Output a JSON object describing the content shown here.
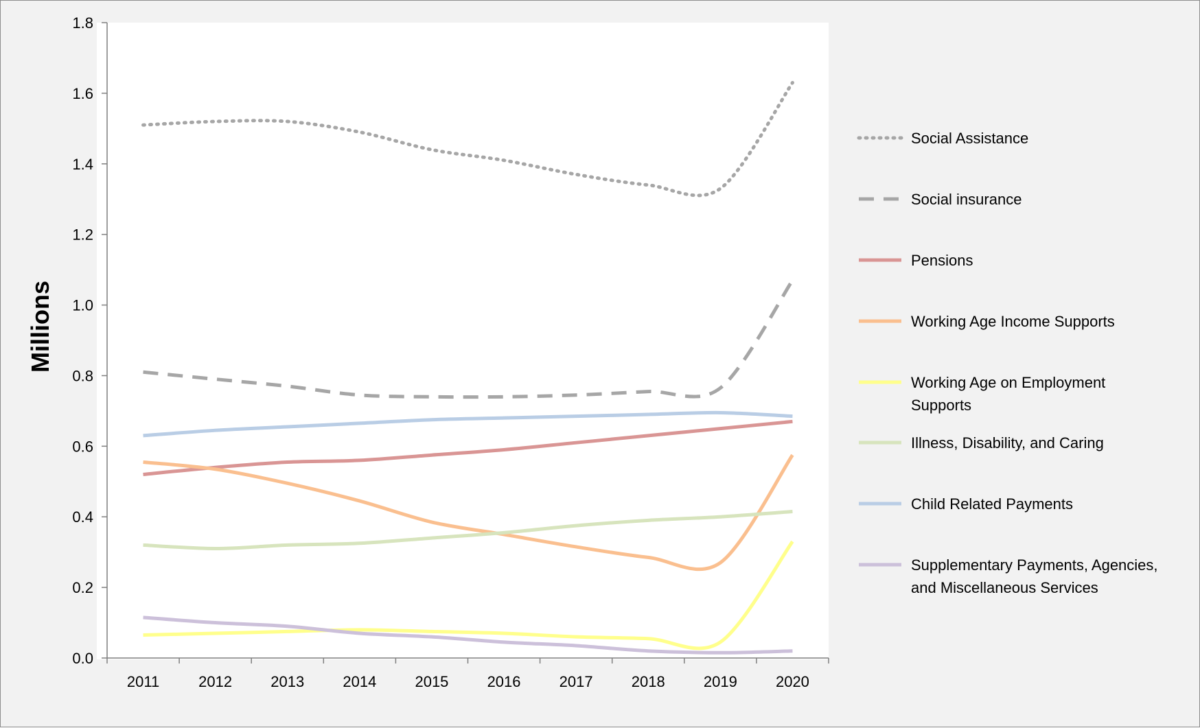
{
  "chart_data": {
    "type": "line",
    "ylabel": "Millions",
    "xlabel": "",
    "ylim": [
      0,
      1.8
    ],
    "yticks": [
      "0.0",
      "0.2",
      "0.4",
      "0.6",
      "0.8",
      "1.0",
      "1.2",
      "1.4",
      "1.6",
      "1.8"
    ],
    "categories": [
      "2011",
      "2012",
      "2013",
      "2014",
      "2015",
      "2016",
      "2017",
      "2018",
      "2019",
      "2020"
    ],
    "legend_position": "right",
    "grid": false,
    "series": [
      {
        "name": "Social Assistance",
        "style": "dotted",
        "color": "#a6a6a6",
        "values": [
          1.51,
          1.52,
          1.52,
          1.49,
          1.44,
          1.41,
          1.37,
          1.34,
          1.33,
          1.63
        ]
      },
      {
        "name": "Social insurance",
        "style": "dashed",
        "color": "#a6a6a6",
        "values": [
          0.81,
          0.79,
          0.77,
          0.745,
          0.74,
          0.74,
          0.745,
          0.755,
          0.765,
          1.07
        ]
      },
      {
        "name": "Pensions",
        "style": "solid",
        "color": "#d99594",
        "values": [
          0.52,
          0.54,
          0.555,
          0.56,
          0.575,
          0.59,
          0.61,
          0.63,
          0.65,
          0.67
        ]
      },
      {
        "name": "Working Age Income Supports",
        "style": "solid",
        "color": "#fabf8f",
        "values": [
          0.555,
          0.535,
          0.495,
          0.445,
          0.385,
          0.35,
          0.315,
          0.285,
          0.27,
          0.575
        ]
      },
      {
        "name": "Working Age on Employment Supports",
        "style": "solid",
        "color": "#ffff8c",
        "values": [
          0.065,
          0.07,
          0.075,
          0.08,
          0.075,
          0.07,
          0.06,
          0.055,
          0.045,
          0.33
        ]
      },
      {
        "name": "Illness, Disability, and Caring",
        "style": "solid",
        "color": "#d7e4bd",
        "values": [
          0.32,
          0.31,
          0.32,
          0.325,
          0.34,
          0.355,
          0.375,
          0.39,
          0.4,
          0.415
        ]
      },
      {
        "name": "Child Related Payments",
        "style": "solid",
        "color": "#b9cde5",
        "values": [
          0.63,
          0.645,
          0.655,
          0.665,
          0.675,
          0.68,
          0.685,
          0.69,
          0.695,
          0.685
        ]
      },
      {
        "name": "Supplementary Payments, Agencies, and Miscellaneous Services",
        "style": "solid",
        "color": "#ccc0da",
        "values": [
          0.115,
          0.1,
          0.09,
          0.07,
          0.06,
          0.045,
          0.035,
          0.02,
          0.015,
          0.02
        ]
      }
    ]
  },
  "legend_lines": [
    [
      "Social Assistance"
    ],
    [
      "Social insurance"
    ],
    [
      "Pensions"
    ],
    [
      "Working Age Income Supports"
    ],
    [
      "Working Age on Employment",
      "Supports"
    ],
    [
      "Illness, Disability, and Caring"
    ],
    [
      "Child Related Payments"
    ],
    [
      "Supplementary Payments, Agencies,",
      "and Miscellaneous Services"
    ]
  ]
}
